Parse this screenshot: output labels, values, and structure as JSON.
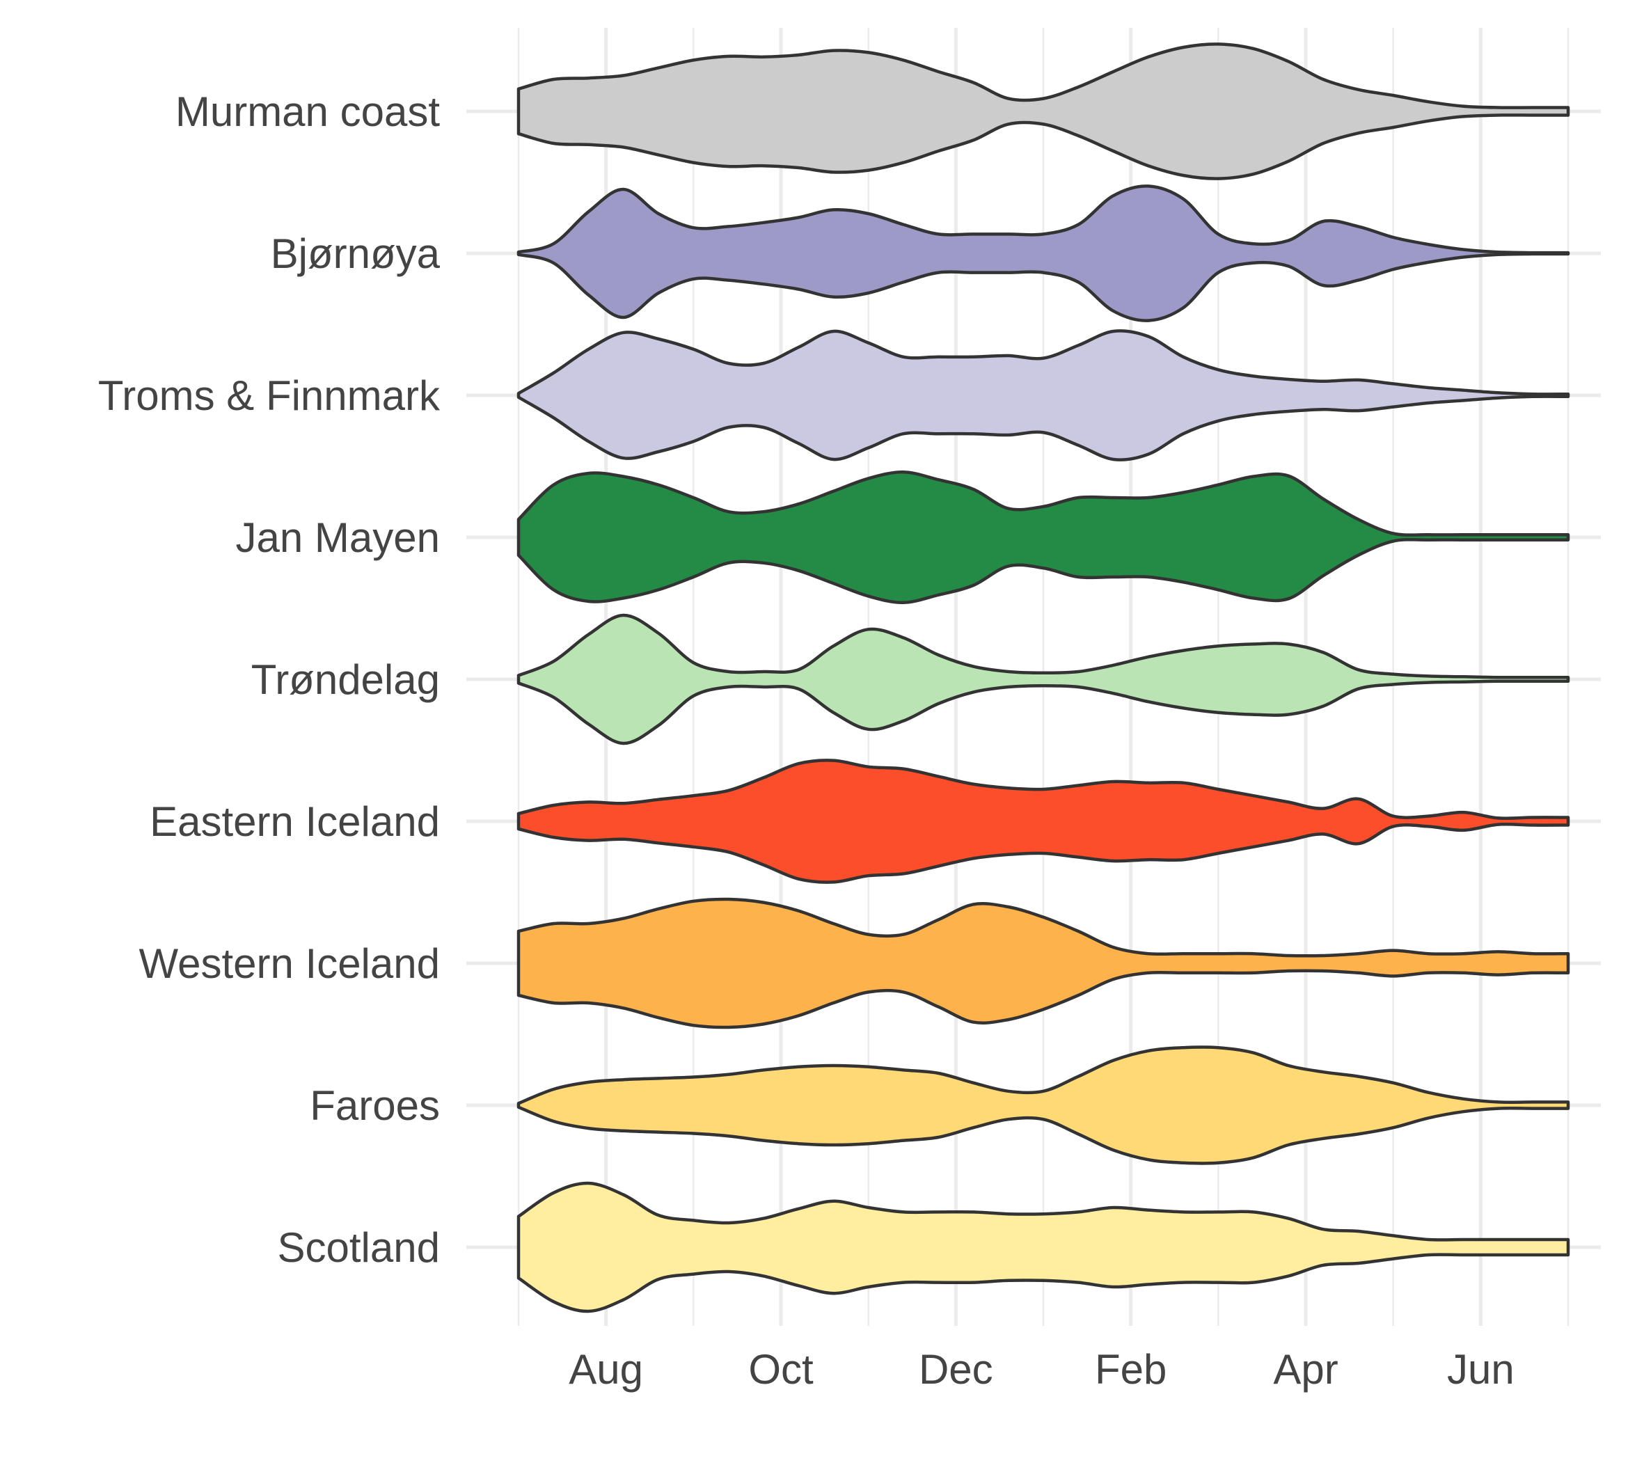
{
  "chart_data": {
    "type": "violin",
    "title": "",
    "xlabel": "",
    "ylabel": "",
    "x_ticks": [
      "Aug",
      "Oct",
      "Dec",
      "Feb",
      "Apr",
      "Jun"
    ],
    "x_tick_months": [
      1,
      3,
      5,
      7,
      9,
      11
    ],
    "x_range_months": [
      0,
      12
    ],
    "grid": true,
    "legend": "none",
    "categories": [
      "Murman coast",
      "Bjørnøya",
      "Troms & Finnmark",
      "Jan Mayen",
      "Trøndelag",
      "Eastern Iceland",
      "Western Iceland",
      "Faroes",
      "Scotland"
    ],
    "series": [
      {
        "name": "Murman coast",
        "color": "#cccccc",
        "x": [
          0,
          0.4,
          0.8,
          1.2,
          1.6,
          2,
          2.4,
          2.8,
          3.2,
          3.6,
          4,
          4.4,
          4.8,
          5.2,
          5.6,
          6,
          6.4,
          6.8,
          7.2,
          7.6,
          8,
          8.4,
          8.8,
          9.2,
          9.6,
          10,
          10.4,
          10.8,
          11.2,
          11.6,
          12
        ],
        "density": [
          0.35,
          0.5,
          0.52,
          0.56,
          0.68,
          0.8,
          0.86,
          0.85,
          0.88,
          0.95,
          0.92,
          0.8,
          0.62,
          0.45,
          0.2,
          0.2,
          0.38,
          0.62,
          0.85,
          1.0,
          1.05,
          0.98,
          0.78,
          0.5,
          0.34,
          0.25,
          0.15,
          0.08,
          0.06,
          0.06,
          0.06
        ]
      },
      {
        "name": "Bjørnøya",
        "color": "#9e9ac8",
        "x": [
          0,
          0.4,
          0.8,
          1.2,
          1.6,
          2,
          2.4,
          2.8,
          3.2,
          3.6,
          4,
          4.4,
          4.8,
          5.2,
          5.6,
          6,
          6.4,
          6.8,
          7.2,
          7.6,
          8,
          8.4,
          8.8,
          9.2,
          9.6,
          10,
          10.4,
          10.8,
          11.2,
          11.6,
          12
        ],
        "density": [
          0.02,
          0.15,
          0.65,
          1.0,
          0.62,
          0.4,
          0.42,
          0.48,
          0.56,
          0.68,
          0.62,
          0.45,
          0.3,
          0.3,
          0.3,
          0.3,
          0.45,
          0.9,
          1.05,
          0.85,
          0.3,
          0.15,
          0.2,
          0.5,
          0.42,
          0.25,
          0.14,
          0.06,
          0.02,
          0.01,
          0.01
        ]
      },
      {
        "name": "Troms & Finnmark",
        "color": "#cbc9e2",
        "x": [
          0,
          0.4,
          0.8,
          1.2,
          1.6,
          2,
          2.4,
          2.8,
          3.2,
          3.6,
          4,
          4.4,
          4.8,
          5.2,
          5.6,
          6,
          6.4,
          6.8,
          7.2,
          7.6,
          8,
          8.4,
          8.8,
          9.2,
          9.6,
          10,
          10.4,
          10.8,
          11.2,
          11.6,
          12
        ],
        "density": [
          0.03,
          0.35,
          0.72,
          0.98,
          0.88,
          0.72,
          0.5,
          0.5,
          0.75,
          1.0,
          0.82,
          0.6,
          0.6,
          0.6,
          0.62,
          0.58,
          0.78,
          1.0,
          0.92,
          0.6,
          0.4,
          0.3,
          0.25,
          0.22,
          0.24,
          0.18,
          0.12,
          0.08,
          0.04,
          0.02,
          0.02
        ]
      },
      {
        "name": "Jan Mayen",
        "color": "#238b45",
        "x": [
          0,
          0.4,
          0.8,
          1.2,
          1.6,
          2,
          2.4,
          2.8,
          3.2,
          3.6,
          4,
          4.4,
          4.8,
          5.2,
          5.6,
          6,
          6.4,
          6.8,
          7.2,
          7.6,
          8,
          8.4,
          8.8,
          9.2,
          9.6,
          10,
          10.4,
          10.8,
          11.2,
          11.6,
          12
        ],
        "density": [
          0.28,
          0.82,
          1.0,
          0.95,
          0.82,
          0.62,
          0.4,
          0.4,
          0.52,
          0.72,
          0.92,
          1.02,
          0.9,
          0.75,
          0.45,
          0.48,
          0.62,
          0.62,
          0.62,
          0.7,
          0.82,
          0.95,
          0.96,
          0.6,
          0.28,
          0.06,
          0.04,
          0.04,
          0.04,
          0.04,
          0.04
        ]
      },
      {
        "name": "Trøndelag",
        "color": "#bae4b3",
        "x": [
          0,
          0.4,
          0.8,
          1.2,
          1.6,
          2,
          2.4,
          2.8,
          3.2,
          3.6,
          4,
          4.4,
          4.8,
          5.2,
          5.6,
          6,
          6.4,
          6.8,
          7.2,
          7.6,
          8,
          8.4,
          8.8,
          9.2,
          9.6,
          10,
          10.4,
          10.8,
          11.2,
          11.6,
          12
        ],
        "density": [
          0.06,
          0.28,
          0.7,
          1.0,
          0.72,
          0.26,
          0.12,
          0.12,
          0.15,
          0.52,
          0.78,
          0.65,
          0.38,
          0.2,
          0.12,
          0.1,
          0.12,
          0.22,
          0.35,
          0.45,
          0.52,
          0.55,
          0.55,
          0.42,
          0.15,
          0.08,
          0.05,
          0.04,
          0.03,
          0.03,
          0.03
        ]
      },
      {
        "name": "Eastern Iceland",
        "color": "#fc4e2a",
        "x": [
          0,
          0.4,
          0.8,
          1.2,
          1.6,
          2,
          2.4,
          2.8,
          3.2,
          3.6,
          4,
          4.4,
          4.8,
          5.2,
          5.6,
          6,
          6.4,
          6.8,
          7.2,
          7.6,
          8,
          8.4,
          8.8,
          9.2,
          9.6,
          10,
          10.4,
          10.8,
          11.2,
          11.6,
          12
        ],
        "density": [
          0.12,
          0.25,
          0.3,
          0.28,
          0.34,
          0.4,
          0.48,
          0.68,
          0.9,
          0.95,
          0.85,
          0.82,
          0.7,
          0.58,
          0.52,
          0.5,
          0.56,
          0.62,
          0.6,
          0.6,
          0.5,
          0.4,
          0.3,
          0.2,
          0.35,
          0.08,
          0.08,
          0.14,
          0.05,
          0.06,
          0.06
        ]
      },
      {
        "name": "Western Iceland",
        "color": "#feb24c",
        "x": [
          0,
          0.4,
          0.8,
          1.2,
          1.6,
          2,
          2.4,
          2.8,
          3.2,
          3.6,
          4,
          4.4,
          4.8,
          5.2,
          5.6,
          6,
          6.4,
          6.8,
          7.2,
          7.6,
          8,
          8.4,
          8.8,
          9.2,
          9.6,
          10,
          10.4,
          10.8,
          11.2,
          11.6,
          12
        ],
        "density": [
          0.5,
          0.62,
          0.62,
          0.7,
          0.85,
          0.97,
          1.0,
          0.95,
          0.82,
          0.62,
          0.45,
          0.45,
          0.68,
          0.92,
          0.88,
          0.72,
          0.5,
          0.25,
          0.15,
          0.15,
          0.15,
          0.15,
          0.12,
          0.12,
          0.15,
          0.2,
          0.15,
          0.15,
          0.18,
          0.15,
          0.15
        ]
      },
      {
        "name": "Faroes",
        "color": "#fed976",
        "x": [
          0,
          0.4,
          0.8,
          1.2,
          1.6,
          2,
          2.4,
          2.8,
          3.2,
          3.6,
          4,
          4.4,
          4.8,
          5.2,
          5.6,
          6,
          6.4,
          6.8,
          7.2,
          7.6,
          8,
          8.4,
          8.8,
          9.2,
          9.6,
          10,
          10.4,
          10.8,
          11.2,
          11.6,
          12
        ],
        "density": [
          0.03,
          0.25,
          0.36,
          0.4,
          0.42,
          0.44,
          0.48,
          0.55,
          0.6,
          0.62,
          0.6,
          0.55,
          0.5,
          0.35,
          0.22,
          0.22,
          0.45,
          0.7,
          0.85,
          0.9,
          0.9,
          0.82,
          0.62,
          0.52,
          0.45,
          0.35,
          0.2,
          0.1,
          0.05,
          0.05,
          0.05
        ]
      },
      {
        "name": "Scotland",
        "color": "#ffeda0",
        "x": [
          0,
          0.4,
          0.8,
          1.2,
          1.6,
          2,
          2.4,
          2.8,
          3.2,
          3.6,
          4,
          4.4,
          4.8,
          5.2,
          5.6,
          6,
          6.4,
          6.8,
          7.2,
          7.6,
          8,
          8.4,
          8.8,
          9.2,
          9.6,
          10,
          10.4,
          10.8,
          11.2,
          11.6,
          12
        ],
        "density": [
          0.48,
          0.85,
          1.0,
          0.82,
          0.5,
          0.42,
          0.38,
          0.45,
          0.6,
          0.72,
          0.62,
          0.55,
          0.55,
          0.55,
          0.52,
          0.52,
          0.55,
          0.62,
          0.58,
          0.55,
          0.55,
          0.55,
          0.45,
          0.28,
          0.25,
          0.18,
          0.12,
          0.12,
          0.12,
          0.12,
          0.12
        ]
      }
    ]
  }
}
